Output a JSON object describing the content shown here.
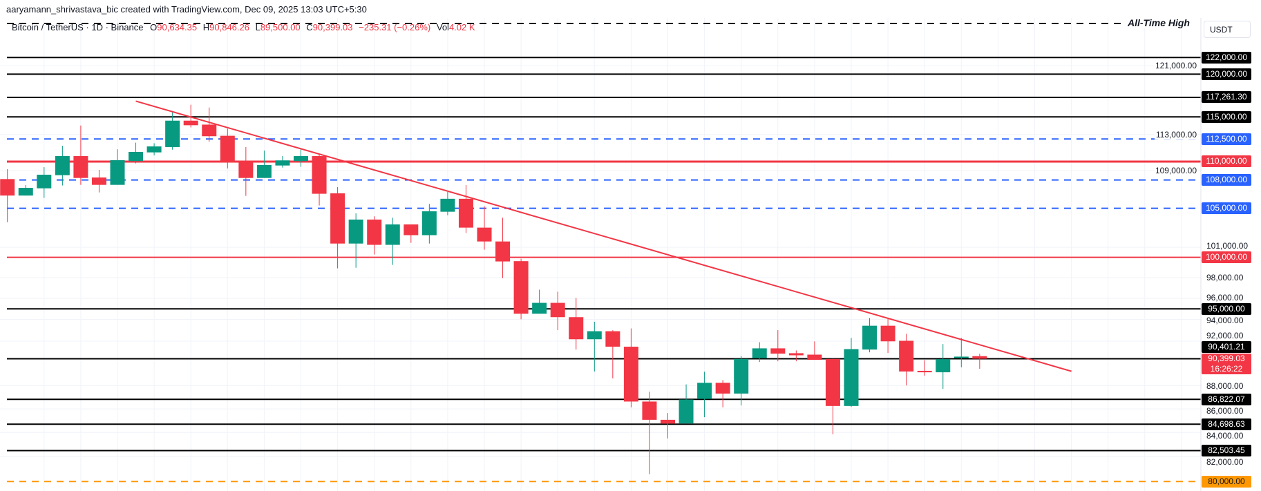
{
  "header": {
    "title": "aaryamann_shrivastava_bic created with TradingView.com, Dec 09, 2025 13:03 UTC+5:30"
  },
  "legend": {
    "symbol": "Bitcoin / TetherUS · 1D · Binance",
    "open_key": "O",
    "open": "90,634.35",
    "high_key": "H",
    "high": "90,846.26",
    "low_key": "L",
    "low": "89,500.00",
    "close_key": "C",
    "close": "90,399.03",
    "change": "−235.31 (−0.26%)",
    "vol_key": "Vol",
    "vol": "4.02 K"
  },
  "axis": {
    "currency": "USDT",
    "current_price_label": "90,399.03",
    "countdown": "16:26:22"
  },
  "colors": {
    "up": "#089981",
    "down": "#F23645",
    "support_black": "#000000",
    "blue_dashed": "#2962FF",
    "red_level": "#F23645",
    "orange_dashed": "#FF9800",
    "trendline": "#F23645"
  },
  "chart_data": {
    "type": "candlestick",
    "scale": "log",
    "ylim": [
      80000,
      126200
    ],
    "grid": true,
    "y_ticks": [
      {
        "value": 121000,
        "label": "121,000.00"
      },
      {
        "value": 113000,
        "label": "113,000.00"
      },
      {
        "value": 109000,
        "label": "109,000.00"
      },
      {
        "value": 101000,
        "label": "101,000.00"
      },
      {
        "value": 98000,
        "label": "98,000.00"
      },
      {
        "value": 96000,
        "label": "96,000.00"
      },
      {
        "value": 94000,
        "label": "94,000.00"
      },
      {
        "value": 92000,
        "label": "92,000.00"
      },
      {
        "value": 88000,
        "label": "88,000.00"
      },
      {
        "value": 86000,
        "label": "86,000.00"
      },
      {
        "value": 84000,
        "label": "84,000.00"
      },
      {
        "value": 82000,
        "label": "82,000.00"
      }
    ],
    "ohlc": [
      [
        108100,
        109170,
        103560,
        106340
      ],
      [
        106340,
        107460,
        106340,
        107160
      ],
      [
        107110,
        109390,
        106090,
        108570
      ],
      [
        108520,
        111750,
        107410,
        110600
      ],
      [
        110600,
        114020,
        107480,
        108220
      ],
      [
        108270,
        109090,
        106670,
        107480
      ],
      [
        107480,
        111360,
        107480,
        110150
      ],
      [
        110050,
        112090,
        109800,
        111060
      ],
      [
        111010,
        112020,
        110680,
        111670
      ],
      [
        111600,
        115550,
        111310,
        114570
      ],
      [
        114570,
        116400,
        113800,
        114050
      ],
      [
        114120,
        116080,
        112190,
        112810
      ],
      [
        112860,
        113670,
        109250,
        109930
      ],
      [
        110000,
        111600,
        106310,
        108220
      ],
      [
        108220,
        111210,
        108220,
        109620
      ],
      [
        109570,
        110600,
        109340,
        110130
      ],
      [
        110050,
        111340,
        109420,
        110600
      ],
      [
        110600,
        110760,
        105290,
        106530
      ],
      [
        106580,
        107240,
        98910,
        101380
      ],
      [
        101380,
        104480,
        98970,
        103830
      ],
      [
        103830,
        104170,
        100280,
        101250
      ],
      [
        101250,
        104020,
        99250,
        103330
      ],
      [
        103330,
        103330,
        101450,
        102230
      ],
      [
        102230,
        105460,
        101380,
        104690
      ],
      [
        104640,
        106720,
        104280,
        106000
      ],
      [
        106000,
        107460,
        102450,
        103000
      ],
      [
        103000,
        105220,
        100760,
        101590
      ],
      [
        101590,
        104020,
        97950,
        99590
      ],
      [
        99620,
        99860,
        94020,
        94540
      ],
      [
        94540,
        96830,
        94540,
        95570
      ],
      [
        95570,
        96630,
        93010,
        94220
      ],
      [
        94220,
        96030,
        91230,
        92170
      ],
      [
        92170,
        93790,
        89260,
        92910
      ],
      [
        92910,
        93000,
        88650,
        91490
      ],
      [
        91490,
        93170,
        86130,
        86630
      ],
      [
        86630,
        87480,
        80590,
        85070
      ],
      [
        85070,
        85640,
        83510,
        84750
      ],
      [
        84760,
        88120,
        84760,
        86800
      ],
      [
        86860,
        89240,
        85290,
        88260
      ],
      [
        88260,
        88510,
        86130,
        87320
      ],
      [
        87320,
        90650,
        86290,
        90380
      ],
      [
        90450,
        91900,
        90110,
        91340
      ],
      [
        91340,
        93010,
        90170,
        90860
      ],
      [
        90900,
        91150,
        90170,
        90710
      ],
      [
        90770,
        91970,
        90300,
        90300
      ],
      [
        90380,
        90400,
        83850,
        86250
      ],
      [
        86250,
        92290,
        86170,
        91270
      ],
      [
        91230,
        94130,
        90980,
        93420
      ],
      [
        93420,
        94040,
        90920,
        91980
      ],
      [
        92030,
        92670,
        88030,
        89260
      ],
      [
        89320,
        90280,
        88890,
        89190
      ],
      [
        89190,
        91730,
        87730,
        90360
      ],
      [
        90460,
        92290,
        89630,
        90590
      ],
      [
        90634.35,
        90846.26,
        89500.0,
        90399.03
      ]
    ],
    "levels": [
      {
        "value": 126200,
        "style": "dashed",
        "color": "#000000",
        "text": "All-Time High"
      },
      {
        "value": 122000,
        "style": "solid",
        "color": "#000000",
        "label": "122,000.00"
      },
      {
        "value": 120000,
        "style": "solid",
        "color": "#000000",
        "label": "120,000.00"
      },
      {
        "value": 117261.3,
        "style": "solid",
        "color": "#000000",
        "label": "117,261.30"
      },
      {
        "value": 115000,
        "style": "solid",
        "color": "#000000",
        "label": "115,000.00"
      },
      {
        "value": 112500,
        "style": "dashed",
        "color": "#2962FF",
        "label": "112,500.00"
      },
      {
        "value": 110000,
        "style": "solid-thick",
        "color": "#F23645",
        "label": "110,000.00"
      },
      {
        "value": 108000,
        "style": "dashed",
        "color": "#2962FF",
        "label": "108,000.00"
      },
      {
        "value": 105000,
        "style": "dashed",
        "color": "#2962FF",
        "label": "105,000.00"
      },
      {
        "value": 100000,
        "style": "solid",
        "color": "#F23645",
        "label": "100,000.00"
      },
      {
        "value": 95000,
        "style": "solid",
        "color": "#000000",
        "label": "95,000.00"
      },
      {
        "value": 90401.21,
        "style": "solid",
        "color": "#000000",
        "label": "90,401.21"
      },
      {
        "value": 86822.07,
        "style": "solid",
        "color": "#000000",
        "label": "86,822.07"
      },
      {
        "value": 84698.63,
        "style": "solid",
        "color": "#000000",
        "label": "84,698.63"
      },
      {
        "value": 82503.45,
        "style": "solid",
        "color": "#000000",
        "label": "82,503.45"
      },
      {
        "value": 80000,
        "style": "dashed",
        "color": "#FF9800",
        "label": "80,000.00"
      }
    ],
    "trendline": [
      {
        "bar": 7,
        "price": 116820
      },
      {
        "bar": 58,
        "price": 89280
      }
    ]
  }
}
